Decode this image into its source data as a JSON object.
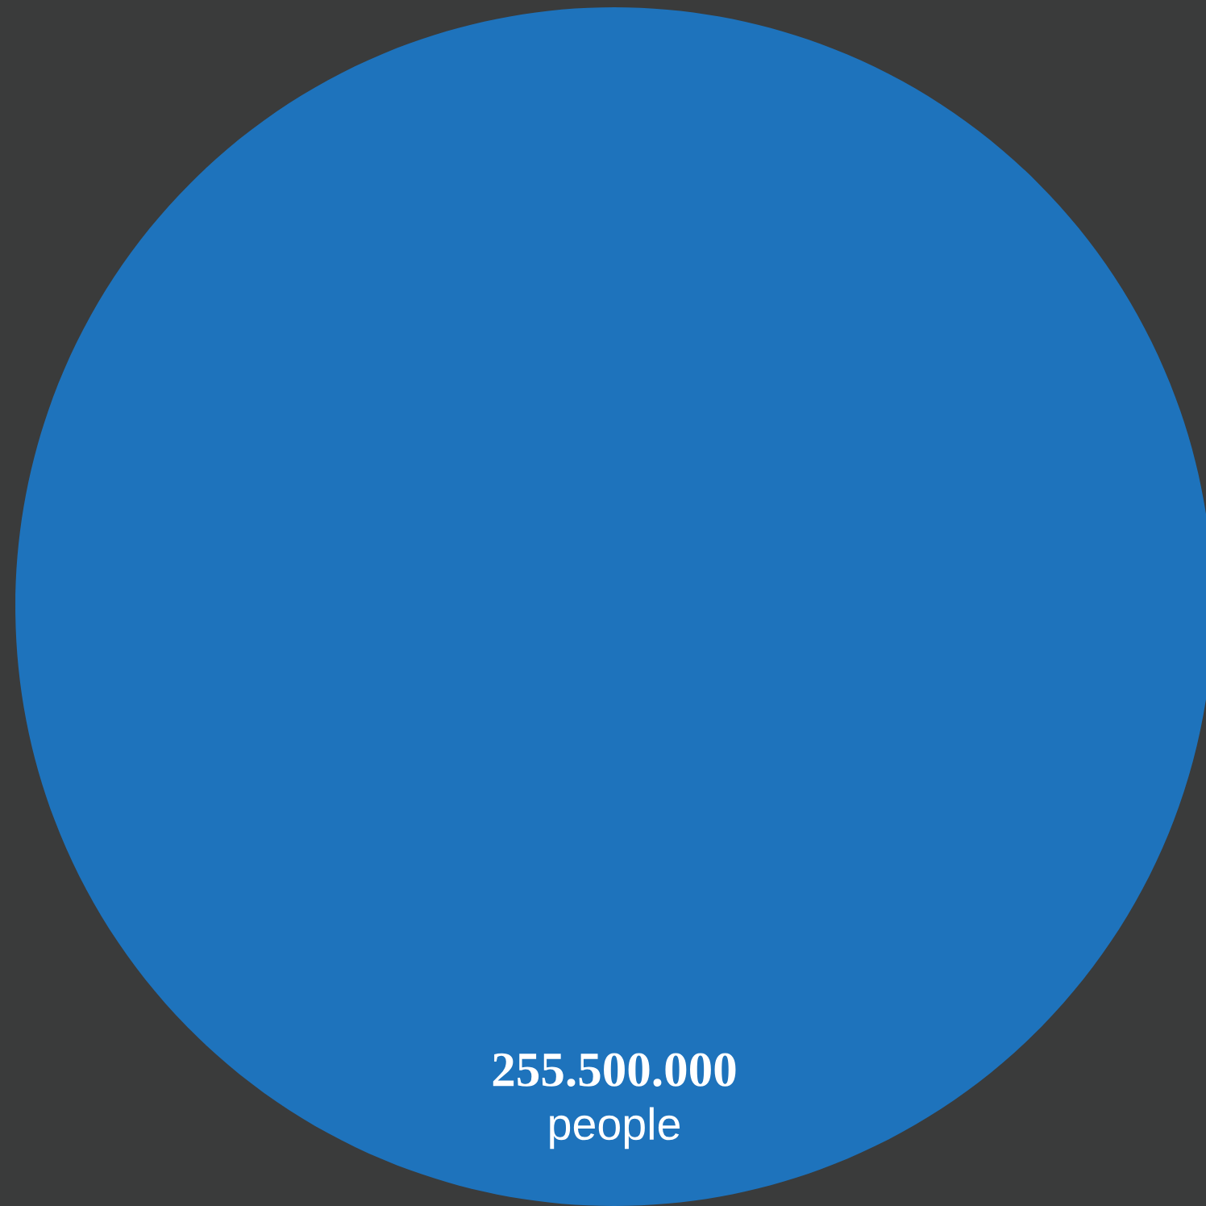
{
  "chart_data": {
    "type": "other",
    "values": [
      255500000
    ],
    "value_labels": [
      "255.500.000"
    ],
    "annotations": [
      "people"
    ],
    "colors": [
      "#1e73bc"
    ]
  }
}
